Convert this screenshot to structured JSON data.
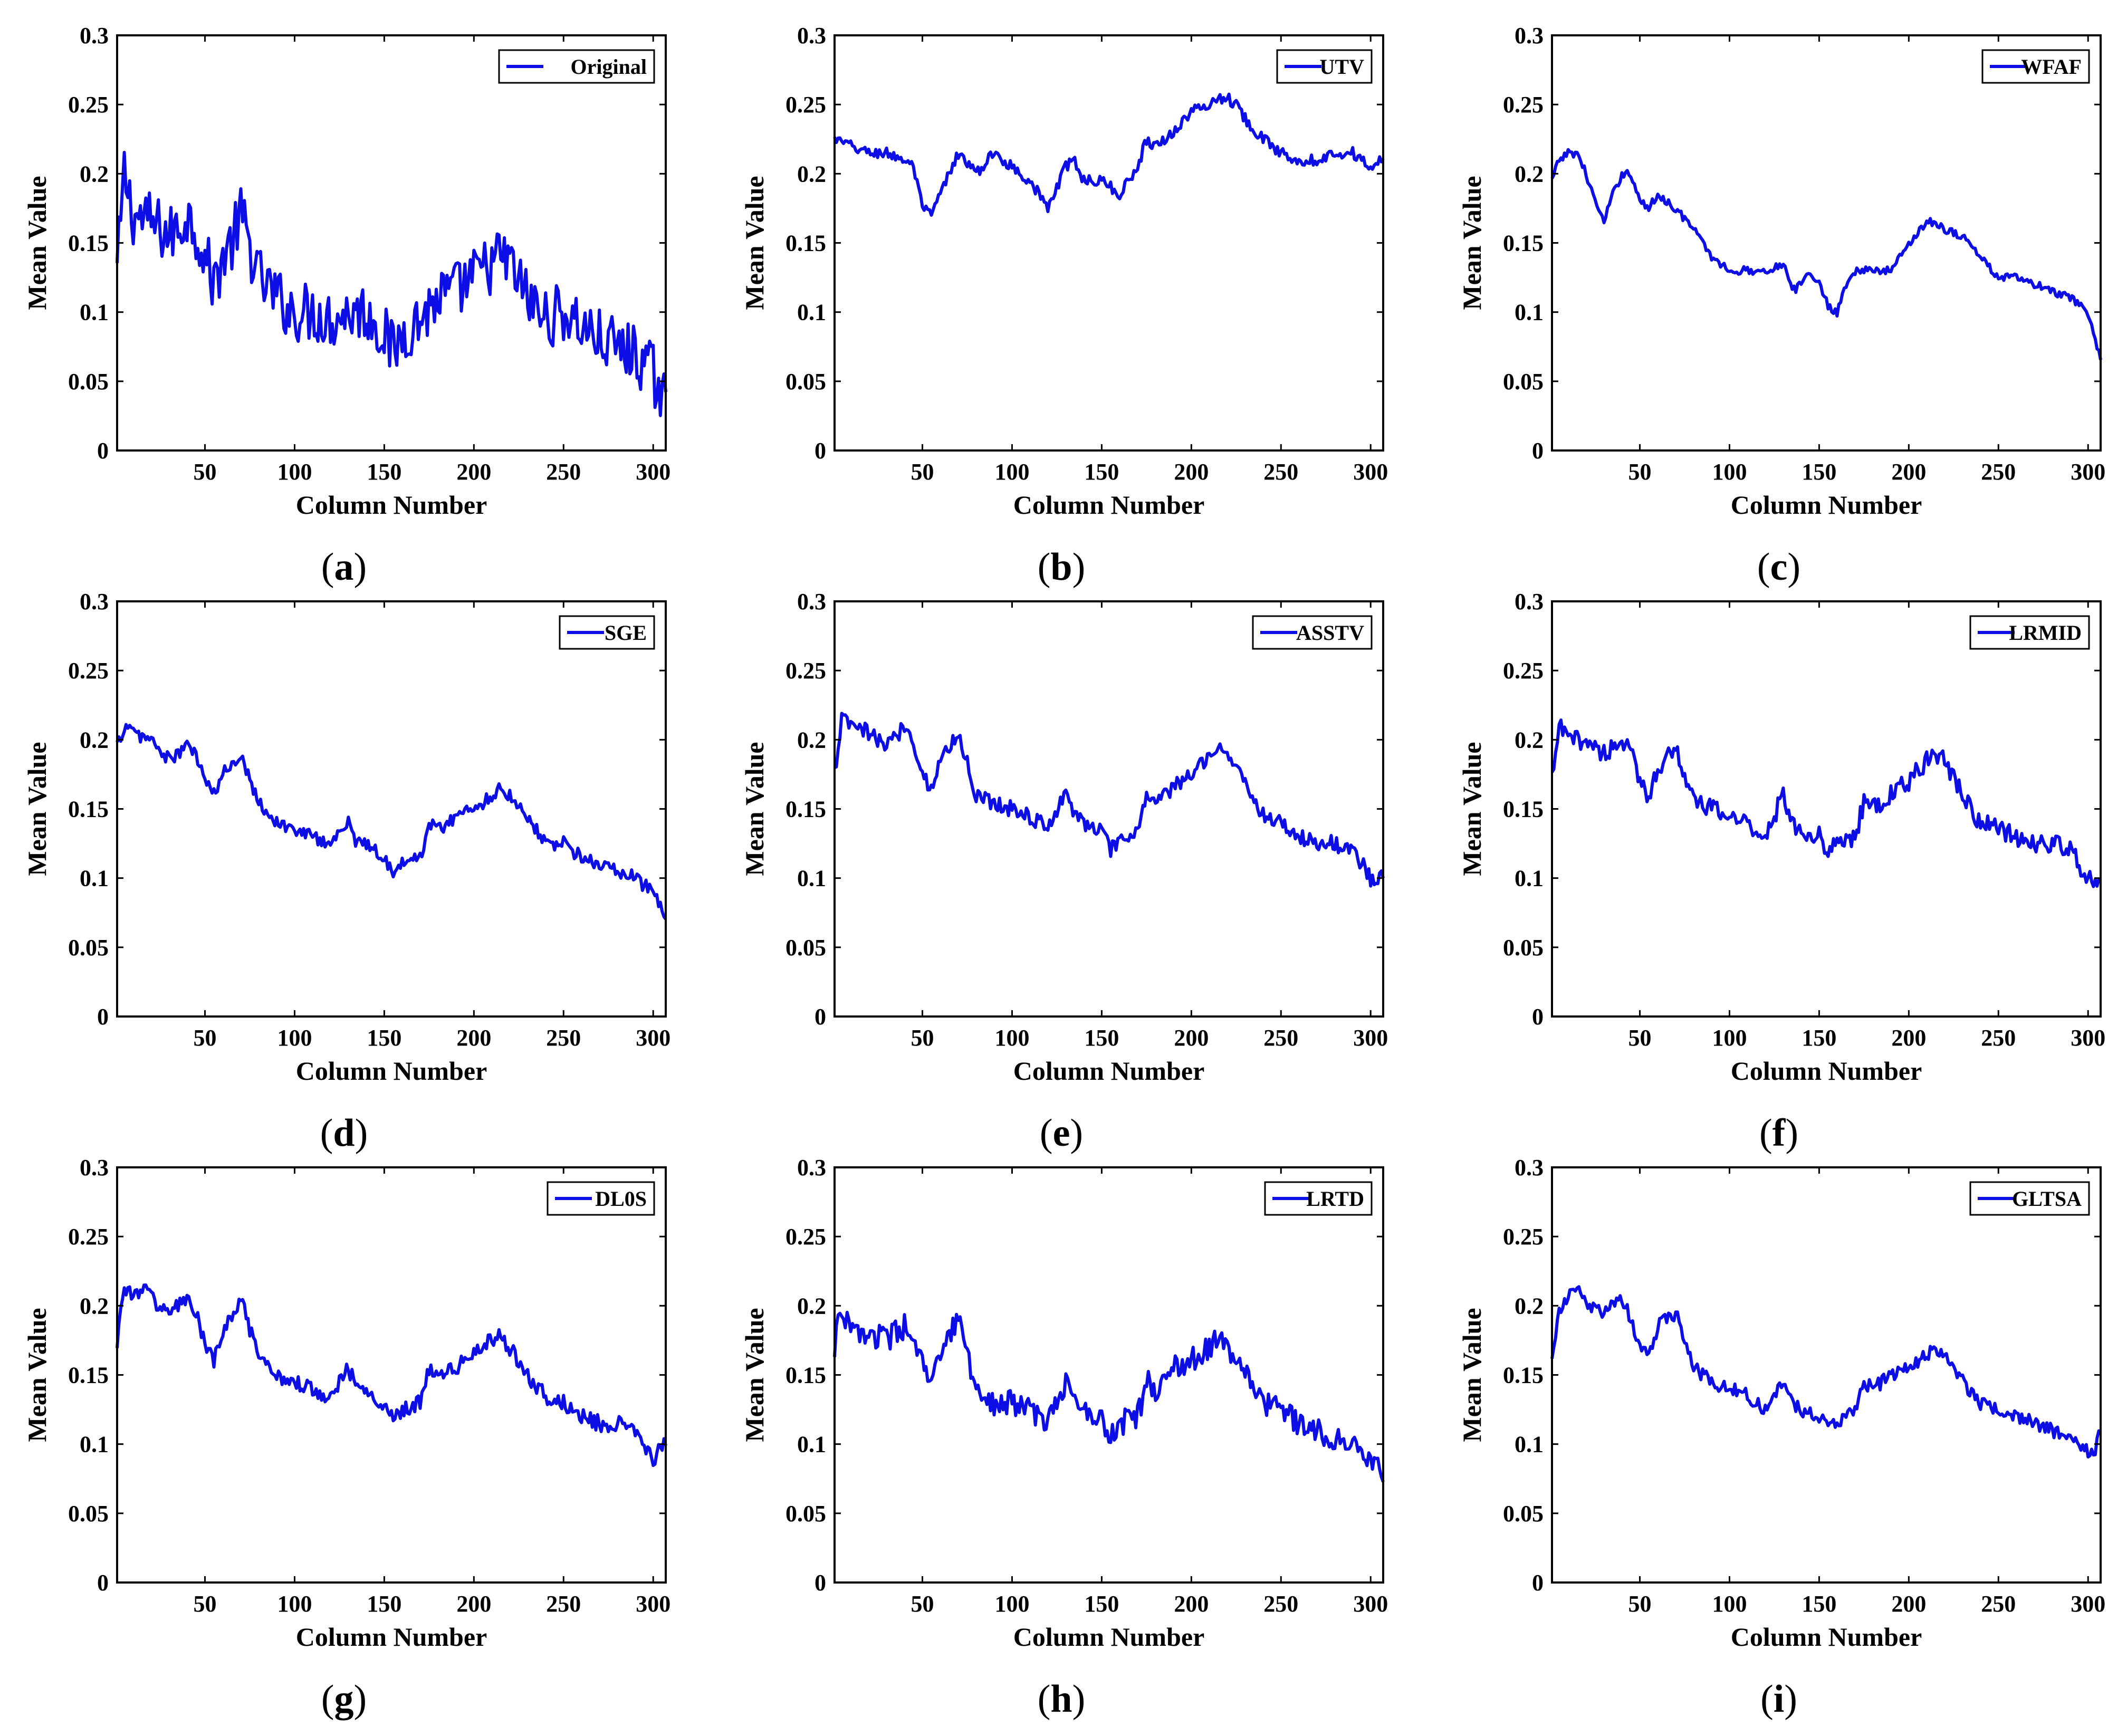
{
  "figure": {
    "line_color": "#0d0de6",
    "axis_color": "#000000",
    "background": "#ffffff"
  },
  "chart_data": [
    {
      "type": "line",
      "panel": "a",
      "caption": "a",
      "legend": "Original",
      "xlabel": "Column Number",
      "ylabel": "Mean Value",
      "xlim": [
        1,
        307
      ],
      "ylim": [
        0,
        0.3
      ],
      "xticks": [
        "50",
        "100",
        "150",
        "200",
        "250",
        "300"
      ],
      "yticks": [
        "0",
        "0.05",
        "0.1",
        "0.15",
        "0.2",
        "0.25",
        "0.3"
      ],
      "noise": 0.022,
      "x": [
        1,
        5,
        10,
        20,
        30,
        35,
        40,
        45,
        50,
        55,
        60,
        65,
        70,
        80,
        90,
        100,
        110,
        120,
        130,
        140,
        150,
        155,
        160,
        170,
        180,
        190,
        200,
        210,
        215,
        220,
        230,
        240,
        250,
        260,
        270,
        280,
        290,
        300,
        305,
        307
      ],
      "y": [
        0.13,
        0.2,
        0.17,
        0.165,
        0.155,
        0.16,
        0.17,
        0.16,
        0.14,
        0.12,
        0.14,
        0.15,
        0.17,
        0.125,
        0.11,
        0.1,
        0.1,
        0.095,
        0.1,
        0.1,
        0.085,
        0.07,
        0.085,
        0.095,
        0.11,
        0.115,
        0.125,
        0.135,
        0.14,
        0.135,
        0.11,
        0.095,
        0.1,
        0.09,
        0.08,
        0.075,
        0.07,
        0.055,
        0.04,
        0.035
      ]
    },
    {
      "type": "line",
      "panel": "b",
      "caption": "b",
      "legend": "UTV",
      "xlabel": "Column Number",
      "ylabel": "Mean Value",
      "xlim": [
        1,
        307
      ],
      "ylim": [
        0,
        0.3
      ],
      "xticks": [
        "50",
        "100",
        "150",
        "200",
        "250",
        "300"
      ],
      "yticks": [
        "0",
        "0.05",
        "0.1",
        "0.15",
        "0.2",
        "0.25",
        "0.3"
      ],
      "noise": 0.004,
      "x": [
        1,
        10,
        20,
        30,
        40,
        45,
        50,
        55,
        60,
        70,
        80,
        90,
        100,
        110,
        120,
        130,
        135,
        140,
        150,
        155,
        160,
        170,
        175,
        180,
        190,
        200,
        210,
        215,
        220,
        225,
        230,
        240,
        250,
        260,
        270,
        280,
        290,
        300,
        307
      ],
      "y": [
        0.225,
        0.22,
        0.215,
        0.215,
        0.21,
        0.205,
        0.175,
        0.17,
        0.185,
        0.215,
        0.2,
        0.215,
        0.205,
        0.195,
        0.175,
        0.205,
        0.21,
        0.195,
        0.195,
        0.19,
        0.185,
        0.205,
        0.225,
        0.22,
        0.23,
        0.245,
        0.25,
        0.255,
        0.255,
        0.25,
        0.24,
        0.225,
        0.215,
        0.21,
        0.21,
        0.215,
        0.215,
        0.205,
        0.21
      ]
    },
    {
      "type": "line",
      "panel": "c",
      "caption": "c",
      "legend": "WFAF",
      "xlabel": "Column Number",
      "ylabel": "Mean Value",
      "xlim": [
        1,
        307
      ],
      "ylim": [
        0,
        0.3
      ],
      "xticks": [
        "50",
        "100",
        "150",
        "200",
        "250",
        "300"
      ],
      "yticks": [
        "0",
        "0.05",
        "0.1",
        "0.15",
        "0.2",
        "0.25",
        "0.3"
      ],
      "noise": 0.003,
      "x": [
        1,
        5,
        10,
        15,
        20,
        25,
        30,
        35,
        40,
        45,
        50,
        55,
        60,
        70,
        80,
        90,
        100,
        110,
        120,
        130,
        135,
        140,
        145,
        150,
        155,
        160,
        165,
        170,
        180,
        190,
        200,
        210,
        215,
        220,
        230,
        240,
        250,
        260,
        270,
        280,
        290,
        300,
        307
      ],
      "y": [
        0.195,
        0.21,
        0.215,
        0.215,
        0.2,
        0.18,
        0.165,
        0.185,
        0.2,
        0.2,
        0.18,
        0.175,
        0.185,
        0.175,
        0.16,
        0.14,
        0.13,
        0.13,
        0.13,
        0.135,
        0.115,
        0.12,
        0.13,
        0.12,
        0.105,
        0.1,
        0.12,
        0.13,
        0.13,
        0.13,
        0.15,
        0.165,
        0.165,
        0.16,
        0.155,
        0.14,
        0.125,
        0.125,
        0.12,
        0.115,
        0.11,
        0.1,
        0.065
      ]
    },
    {
      "type": "line",
      "panel": "d",
      "caption": "d",
      "legend": "SGE",
      "xlabel": "Column Number",
      "ylabel": "Mean Value",
      "xlim": [
        1,
        307
      ],
      "ylim": [
        0,
        0.3
      ],
      "xticks": [
        "50",
        "100",
        "150",
        "200",
        "250",
        "300"
      ],
      "yticks": [
        "0",
        "0.05",
        "0.1",
        "0.15",
        "0.2",
        "0.25",
        "0.3"
      ],
      "noise": 0.005,
      "x": [
        1,
        5,
        10,
        20,
        30,
        40,
        45,
        50,
        55,
        60,
        70,
        80,
        90,
        100,
        110,
        120,
        130,
        135,
        140,
        150,
        155,
        160,
        170,
        175,
        180,
        190,
        200,
        210,
        215,
        220,
        230,
        240,
        250,
        260,
        270,
        280,
        290,
        300,
        307
      ],
      "y": [
        0.195,
        0.21,
        0.205,
        0.2,
        0.185,
        0.195,
        0.19,
        0.17,
        0.16,
        0.175,
        0.19,
        0.155,
        0.14,
        0.135,
        0.13,
        0.125,
        0.14,
        0.125,
        0.125,
        0.115,
        0.105,
        0.11,
        0.115,
        0.14,
        0.135,
        0.145,
        0.15,
        0.16,
        0.165,
        0.16,
        0.145,
        0.125,
        0.125,
        0.115,
        0.11,
        0.105,
        0.1,
        0.09,
        0.07
      ]
    },
    {
      "type": "line",
      "panel": "e",
      "caption": "e",
      "legend": "ASSTV",
      "xlabel": "Column Number",
      "ylabel": "Mean Value",
      "xlim": [
        1,
        307
      ],
      "ylim": [
        0,
        0.3
      ],
      "xticks": [
        "50",
        "100",
        "150",
        "200",
        "250",
        "300"
      ],
      "yticks": [
        "0",
        "0.05",
        "0.1",
        "0.15",
        "0.2",
        "0.25",
        "0.3"
      ],
      "noise": 0.006,
      "x": [
        1,
        5,
        10,
        20,
        30,
        40,
        45,
        50,
        55,
        60,
        70,
        80,
        90,
        100,
        110,
        120,
        130,
        135,
        140,
        150,
        155,
        160,
        170,
        175,
        180,
        190,
        200,
        210,
        215,
        220,
        230,
        240,
        250,
        260,
        270,
        280,
        290,
        300,
        307
      ],
      "y": [
        0.175,
        0.215,
        0.21,
        0.205,
        0.195,
        0.21,
        0.2,
        0.175,
        0.165,
        0.185,
        0.205,
        0.16,
        0.155,
        0.15,
        0.145,
        0.135,
        0.165,
        0.145,
        0.14,
        0.135,
        0.12,
        0.125,
        0.135,
        0.16,
        0.155,
        0.165,
        0.175,
        0.19,
        0.195,
        0.19,
        0.17,
        0.145,
        0.14,
        0.13,
        0.125,
        0.125,
        0.12,
        0.1,
        0.1
      ]
    },
    {
      "type": "line",
      "panel": "f",
      "caption": "f",
      "legend": "LRMID",
      "xlabel": "Column Number",
      "ylabel": "Mean Value",
      "xlim": [
        1,
        307
      ],
      "ylim": [
        0,
        0.3
      ],
      "xticks": [
        "50",
        "100",
        "150",
        "200",
        "250",
        "300"
      ],
      "yticks": [
        "0",
        "0.05",
        "0.1",
        "0.15",
        "0.2",
        "0.25",
        "0.3"
      ],
      "noise": 0.007,
      "x": [
        1,
        5,
        10,
        20,
        30,
        40,
        45,
        50,
        55,
        60,
        70,
        80,
        90,
        100,
        110,
        120,
        130,
        135,
        140,
        150,
        155,
        160,
        170,
        175,
        180,
        190,
        200,
        210,
        215,
        220,
        230,
        240,
        250,
        260,
        270,
        280,
        290,
        300,
        307
      ],
      "y": [
        0.17,
        0.21,
        0.2,
        0.2,
        0.19,
        0.2,
        0.19,
        0.17,
        0.16,
        0.18,
        0.195,
        0.155,
        0.15,
        0.145,
        0.14,
        0.13,
        0.16,
        0.14,
        0.135,
        0.13,
        0.12,
        0.125,
        0.13,
        0.155,
        0.15,
        0.16,
        0.17,
        0.185,
        0.19,
        0.185,
        0.16,
        0.14,
        0.135,
        0.13,
        0.125,
        0.125,
        0.12,
        0.1,
        0.1
      ]
    },
    {
      "type": "line",
      "panel": "g",
      "caption": "g",
      "legend": "DL0S",
      "xlabel": "Column Number",
      "ylabel": "Mean Value",
      "xlim": [
        1,
        307
      ],
      "ylim": [
        0,
        0.3
      ],
      "xticks": [
        "50",
        "100",
        "150",
        "200",
        "250",
        "300"
      ],
      "yticks": [
        "0",
        "0.05",
        "0.1",
        "0.15",
        "0.2",
        "0.25",
        "0.3"
      ],
      "noise": 0.006,
      "x": [
        1,
        5,
        10,
        15,
        20,
        30,
        40,
        45,
        50,
        55,
        60,
        70,
        80,
        90,
        100,
        110,
        120,
        130,
        135,
        140,
        150,
        155,
        160,
        170,
        175,
        180,
        190,
        200,
        210,
        215,
        220,
        230,
        240,
        250,
        260,
        270,
        280,
        290,
        300,
        307
      ],
      "y": [
        0.175,
        0.215,
        0.205,
        0.215,
        0.205,
        0.195,
        0.205,
        0.195,
        0.17,
        0.16,
        0.18,
        0.205,
        0.16,
        0.15,
        0.145,
        0.14,
        0.135,
        0.155,
        0.14,
        0.135,
        0.13,
        0.12,
        0.125,
        0.13,
        0.155,
        0.15,
        0.155,
        0.165,
        0.175,
        0.178,
        0.17,
        0.15,
        0.135,
        0.13,
        0.12,
        0.115,
        0.115,
        0.11,
        0.09,
        0.1
      ]
    },
    {
      "type": "line",
      "panel": "h",
      "caption": "h",
      "legend": "LRTD",
      "xlabel": "Column Number",
      "ylabel": "Mean Value",
      "xlim": [
        1,
        307
      ],
      "ylim": [
        0,
        0.3
      ],
      "xticks": [
        "50",
        "100",
        "150",
        "200",
        "250",
        "300"
      ],
      "yticks": [
        "0",
        "0.05",
        "0.1",
        "0.15",
        "0.2",
        "0.25",
        "0.3"
      ],
      "noise": 0.009,
      "x": [
        1,
        5,
        10,
        20,
        30,
        40,
        45,
        50,
        55,
        60,
        70,
        80,
        90,
        100,
        110,
        120,
        130,
        135,
        140,
        150,
        155,
        160,
        170,
        175,
        180,
        190,
        200,
        210,
        215,
        220,
        230,
        240,
        250,
        260,
        270,
        280,
        290,
        300,
        307
      ],
      "y": [
        0.17,
        0.2,
        0.18,
        0.18,
        0.175,
        0.185,
        0.17,
        0.16,
        0.14,
        0.165,
        0.19,
        0.14,
        0.13,
        0.13,
        0.125,
        0.115,
        0.145,
        0.13,
        0.125,
        0.12,
        0.105,
        0.115,
        0.12,
        0.145,
        0.14,
        0.155,
        0.16,
        0.17,
        0.175,
        0.17,
        0.15,
        0.13,
        0.125,
        0.115,
        0.11,
        0.105,
        0.105,
        0.09,
        0.075
      ]
    },
    {
      "type": "line",
      "panel": "i",
      "caption": "i",
      "legend": "GLTSA",
      "xlabel": "Column Number",
      "ylabel": "Mean Value",
      "xlim": [
        1,
        307
      ],
      "ylim": [
        0,
        0.3
      ],
      "xticks": [
        "50",
        "100",
        "150",
        "200",
        "250",
        "300"
      ],
      "yticks": [
        "0",
        "0.05",
        "0.1",
        "0.15",
        "0.2",
        "0.25",
        "0.3"
      ],
      "noise": 0.005,
      "x": [
        1,
        5,
        10,
        15,
        20,
        30,
        40,
        45,
        50,
        55,
        60,
        70,
        80,
        90,
        100,
        110,
        120,
        130,
        135,
        140,
        150,
        155,
        160,
        170,
        175,
        180,
        190,
        200,
        210,
        215,
        220,
        230,
        240,
        250,
        260,
        270,
        280,
        290,
        300,
        303,
        307
      ],
      "y": [
        0.165,
        0.195,
        0.205,
        0.215,
        0.2,
        0.195,
        0.205,
        0.19,
        0.17,
        0.165,
        0.185,
        0.195,
        0.155,
        0.145,
        0.14,
        0.135,
        0.125,
        0.145,
        0.13,
        0.125,
        0.12,
        0.115,
        0.115,
        0.125,
        0.145,
        0.14,
        0.15,
        0.155,
        0.165,
        0.17,
        0.165,
        0.145,
        0.13,
        0.125,
        0.12,
        0.115,
        0.11,
        0.105,
        0.095,
        0.09,
        0.11
      ]
    }
  ]
}
